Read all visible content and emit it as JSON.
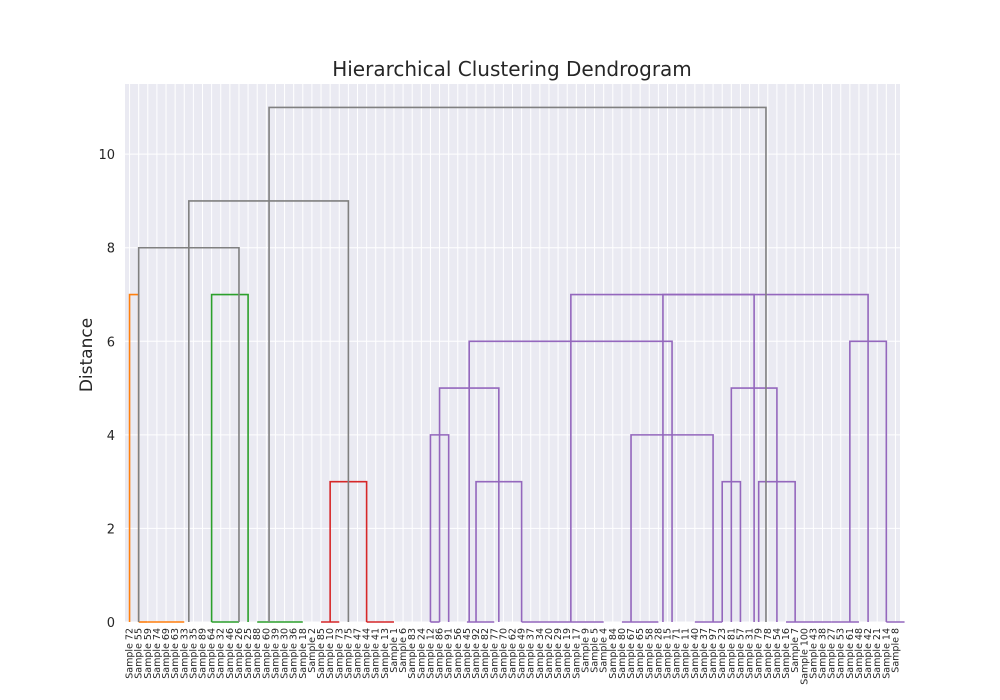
{
  "chart_data": {
    "type": "dendrogram",
    "title": "Hierarchical Clustering Dendrogram",
    "ylabel": "Distance",
    "xlabel": "",
    "ylim": [
      0,
      11.5
    ],
    "y_ticks": [
      0,
      2,
      4,
      6,
      8,
      10
    ],
    "grid": true,
    "leaves": [
      "Sample 72",
      "Sample 55",
      "Sample 59",
      "Sample 74",
      "Sample 69",
      "Sample 63",
      "Sample 33",
      "Sample 35",
      "Sample 89",
      "Sample 64",
      "Sample 32",
      "Sample 46",
      "Sample 26",
      "Sample 25",
      "Sample 88",
      "Sample 60",
      "Sample 39",
      "Sample 30",
      "Sample 36",
      "Sample 18",
      "Sample 2",
      "Sample 85",
      "Sample 10",
      "Sample 73",
      "Sample 75",
      "Sample 47",
      "Sample 44",
      "Sample 41",
      "Sample 13",
      "Sample 1",
      "Sample 6",
      "Sample 83",
      "Sample 24",
      "Sample 12",
      "Sample 86",
      "Sample 91",
      "Sample 56",
      "Sample 45",
      "Sample 92",
      "Sample 82",
      "Sample 77",
      "Sample 70",
      "Sample 62",
      "Sample 49",
      "Sample 37",
      "Sample 34",
      "Sample 20",
      "Sample 29",
      "Sample 19",
      "Sample 17",
      "Sample 9",
      "Sample 5",
      "Sample 4",
      "Sample 84",
      "Sample 80",
      "Sample 67",
      "Sample 65",
      "Sample 58",
      "Sample 28",
      "Sample 15",
      "Sample 71",
      "Sample 11",
      "Sample 40",
      "Sample 37",
      "Sample 97",
      "Sample 23",
      "Sample 81",
      "Sample 57",
      "Sample 31",
      "Sample 79",
      "Sample 78",
      "Sample 54",
      "Sample 16",
      "Sample 7",
      "Sample 100",
      "Sample 43",
      "Sample 38",
      "Sample 27",
      "Sample 53",
      "Sample 61",
      "Sample 48",
      "Sample 42",
      "Sample 21",
      "Sample 14",
      "Sample 8"
    ],
    "colors": {
      "above_threshold": "#808080",
      "c1": "#ff7f0e",
      "c2": "#2ca02c",
      "c3": "#d62728",
      "c4": "#9467bd"
    },
    "links": [
      {
        "lc": 0,
        "rc": 1,
        "h": 7,
        "color": "c1"
      },
      {
        "lc": 1,
        "rc": 2,
        "h": 0,
        "color": "c1"
      },
      {
        "lc": 2,
        "rc": 6,
        "h": 0,
        "color": "c1"
      },
      {
        "lc": 9,
        "rc": 13,
        "h": 7,
        "color": "c2"
      },
      {
        "lc": 9,
        "rc": 12,
        "h": 0,
        "color": "c2"
      },
      {
        "lc": 14,
        "rc": 19,
        "h": 0,
        "color": "c2"
      },
      {
        "lc": 22,
        "rc": 26,
        "h": 3,
        "color": "c3"
      },
      {
        "lc": 21,
        "rc": 23,
        "h": 0,
        "color": "c3"
      },
      {
        "lc": 26,
        "rc": 29,
        "h": 0,
        "color": "c3"
      },
      {
        "lc": 33,
        "rc": 35,
        "h": 4,
        "color": "c4"
      },
      {
        "lc": 33,
        "rc": 34,
        "h": 0,
        "color": "c4"
      },
      {
        "lc": 38,
        "rc": 43,
        "h": 3,
        "color": "c4"
      },
      {
        "lc": 37,
        "rc": 40,
        "h": 0,
        "color": "c4"
      },
      {
        "lc": 34,
        "rc": 40.5,
        "h": 5,
        "color": "c4"
      },
      {
        "lc": 43,
        "rc": 52,
        "h": 0,
        "color": "c4"
      },
      {
        "lc": 55,
        "rc": 64,
        "h": 4,
        "color": "c4"
      },
      {
        "lc": 54,
        "rc": 58,
        "h": 0,
        "color": "c4"
      },
      {
        "lc": 62,
        "rc": 65,
        "h": 0,
        "color": "c4"
      },
      {
        "lc": 37.25,
        "rc": 59.5,
        "h": 6,
        "color": "c4"
      },
      {
        "lc": 65,
        "rc": 67,
        "h": 3,
        "color": "c4"
      },
      {
        "lc": 69,
        "rc": 73,
        "h": 3,
        "color": "c4"
      },
      {
        "lc": 72,
        "rc": 77,
        "h": 0,
        "color": "c4"
      },
      {
        "lc": 66,
        "rc": 71,
        "h": 5,
        "color": "c4"
      },
      {
        "lc": 79,
        "rc": 83,
        "h": 6,
        "color": "c4"
      },
      {
        "lc": 77,
        "rc": 80,
        "h": 0,
        "color": "c4"
      },
      {
        "lc": 83,
        "rc": 85,
        "h": 0,
        "color": "c4"
      },
      {
        "lc": 48.4,
        "rc": 68.5,
        "h": 7,
        "color": "c4"
      },
      {
        "lc": 58.5,
        "rc": 81,
        "h": 7,
        "color": "c4"
      },
      {
        "lc": 1,
        "rc": 12,
        "h": 8,
        "color": "above_threshold"
      },
      {
        "lc": 6.5,
        "rc": 24,
        "h": 9,
        "color": "above_threshold"
      },
      {
        "lc": 15.3,
        "rc": 69.8,
        "h": 11,
        "color": "above_threshold"
      }
    ]
  }
}
